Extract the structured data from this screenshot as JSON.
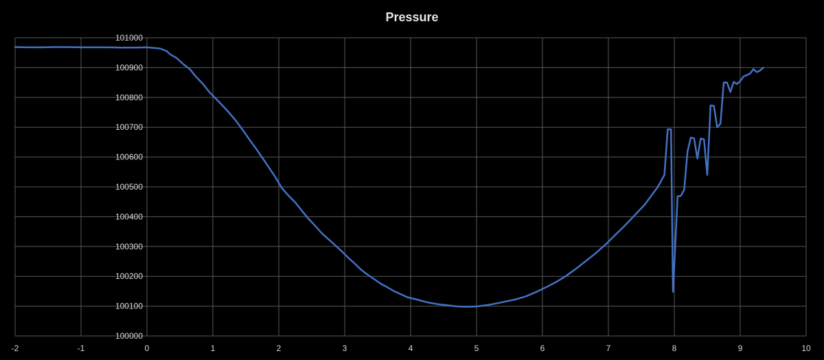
{
  "chart_data": {
    "type": "line",
    "title": "Pressure",
    "xlabel": "",
    "ylabel": "",
    "xlim": [
      -2,
      10
    ],
    "ylim": [
      100000,
      101000
    ],
    "x_ticks": [
      -2,
      -1,
      0,
      1,
      2,
      3,
      4,
      5,
      6,
      7,
      8,
      9,
      10
    ],
    "y_ticks": [
      100000,
      100100,
      100200,
      100300,
      100400,
      100500,
      100600,
      100700,
      100800,
      100900,
      101000
    ],
    "grid": true,
    "legend": "none",
    "line_color": "#4472C4",
    "series": [
      {
        "x": [
          -2.0,
          -1.8,
          -1.6,
          -1.4,
          -1.2,
          -1.0,
          -0.8,
          -0.6,
          -0.4,
          -0.2,
          0.0,
          0.1,
          0.2,
          0.3,
          0.35,
          0.45,
          0.55,
          0.65,
          0.75,
          0.85,
          0.95,
          1.05,
          1.15,
          1.25,
          1.35,
          1.45,
          1.55,
          1.65,
          1.75,
          1.85,
          1.95,
          2.05,
          2.15,
          2.25,
          2.35,
          2.45,
          2.55,
          2.65,
          2.75,
          2.85,
          2.95,
          3.05,
          3.15,
          3.25,
          3.35,
          3.45,
          3.55,
          3.65,
          3.75,
          3.85,
          3.95,
          4.1,
          4.25,
          4.4,
          4.55,
          4.7,
          4.85,
          5.0,
          5.15,
          5.3,
          5.45,
          5.6,
          5.75,
          5.9,
          6.05,
          6.2,
          6.35,
          6.5,
          6.65,
          6.8,
          6.95,
          7.1,
          7.25,
          7.4,
          7.55,
          7.65,
          7.75,
          7.8,
          7.85,
          7.9,
          7.95,
          7.98,
          8.05,
          8.1,
          8.15,
          8.2,
          8.25,
          8.3,
          8.35,
          8.4,
          8.45,
          8.5,
          8.55,
          8.6,
          8.65,
          8.7,
          8.75,
          8.8,
          8.85,
          8.9,
          8.95,
          9.0,
          9.05,
          9.1,
          9.15,
          9.2,
          9.25,
          9.3,
          9.35
        ],
        "y": [
          100969,
          100968,
          100968,
          100969,
          100969,
          100968,
          100968,
          100968,
          100967,
          100967,
          100968,
          100966,
          100964,
          100955,
          100945,
          100932,
          100912,
          100895,
          100868,
          100845,
          100817,
          100795,
          100772,
          100748,
          100722,
          100692,
          100660,
          100630,
          100598,
          100565,
          100532,
          100495,
          100470,
          100448,
          100420,
          100393,
          100370,
          100345,
          100325,
          100305,
          100285,
          100263,
          100243,
          100222,
          100205,
          100190,
          100175,
          100163,
          100150,
          100140,
          100130,
          100122,
          100113,
          100107,
          100103,
          100099,
          100098,
          100099,
          100103,
          100109,
          100116,
          100123,
          100133,
          100147,
          100163,
          100180,
          100200,
          100224,
          100250,
          100276,
          100305,
          100338,
          100370,
          100405,
          100440,
          100470,
          100500,
          100520,
          100540,
          100693,
          100693,
          100148,
          100468,
          100470,
          100490,
          100618,
          100665,
          100663,
          100595,
          100662,
          100660,
          100540,
          100773,
          100772,
          100700,
          100712,
          100850,
          100850,
          100818,
          100852,
          100845,
          100855,
          100870,
          100875,
          100880,
          100895,
          100885,
          100890,
          100900
        ]
      }
    ]
  }
}
